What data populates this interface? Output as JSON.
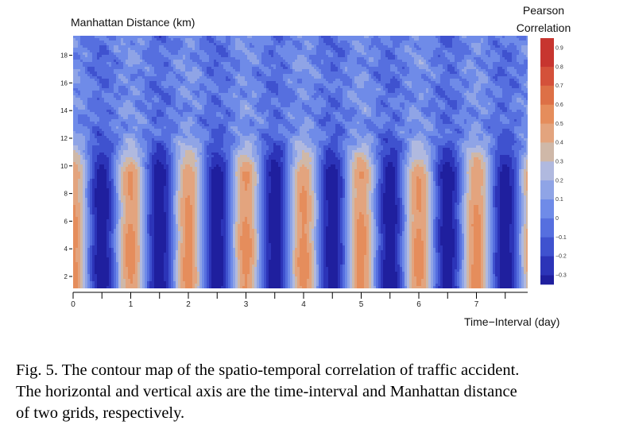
{
  "chart_data": {
    "type": "heatmap",
    "subtype": "contour",
    "ylabel": "Manhattan Distance (km)",
    "xlabel": "Time−Interval (day)",
    "x_ticks": [
      0,
      1,
      2,
      3,
      4,
      5,
      6,
      7
    ],
    "y_ticks": [
      2,
      4,
      6,
      8,
      10,
      12,
      14,
      16,
      18
    ],
    "xlim": [
      0,
      8
    ],
    "ylim": [
      1,
      19
    ],
    "colorbar": {
      "title_line1": "Pearson",
      "title_line2": "Correlation",
      "tick_labels": [
        "0.9",
        "0.8",
        "0.7",
        "0.6",
        "0.5",
        "0.4",
        "0.3",
        "0.2",
        "0.1",
        "0",
        "−0.1",
        "−0.2",
        "−0.3"
      ],
      "range": [
        -0.35,
        0.95
      ],
      "levels": [
        {
          "lo": -0.35,
          "hi": -0.3,
          "color": "#1f1f9e"
        },
        {
          "lo": -0.3,
          "hi": -0.2,
          "color": "#2c34b8"
        },
        {
          "lo": -0.2,
          "hi": -0.1,
          "color": "#3f52cf"
        },
        {
          "lo": -0.1,
          "hi": 0.0,
          "color": "#566fdf"
        },
        {
          "lo": 0.0,
          "hi": 0.1,
          "color": "#6f8be8"
        },
        {
          "lo": 0.1,
          "hi": 0.2,
          "color": "#8fa4e6"
        },
        {
          "lo": 0.2,
          "hi": 0.3,
          "color": "#b0b9df"
        },
        {
          "lo": 0.3,
          "hi": 0.4,
          "color": "#cfb8a8"
        },
        {
          "lo": 0.4,
          "hi": 0.5,
          "color": "#e3a47e"
        },
        {
          "lo": 0.5,
          "hi": 0.6,
          "color": "#e58d5c"
        },
        {
          "lo": 0.6,
          "hi": 0.7,
          "color": "#dd7046"
        },
        {
          "lo": 0.7,
          "hi": 0.8,
          "color": "#d4513a"
        },
        {
          "lo": 0.8,
          "hi": 0.95,
          "color": "#c7352f"
        }
      ]
    },
    "data_summary": {
      "period_days": 1,
      "correlation_peak": 0.45,
      "correlation_trough": -0.32,
      "peak_days": [
        0,
        1,
        2,
        3,
        4,
        5,
        6,
        7
      ],
      "trough_days": [
        0.5,
        1.5,
        2.5,
        3.5,
        4.5,
        5.5,
        6.5,
        7.5
      ],
      "fine_texture_above_km": 10
    }
  },
  "caption": {
    "line1": "Fig. 5.  The contour map of the spatio-temporal correlation of traffic accident.",
    "line2": "The horizontal and vertical axis are the time-interval and Manhattan distance",
    "line3": "of two grids, respectively."
  }
}
